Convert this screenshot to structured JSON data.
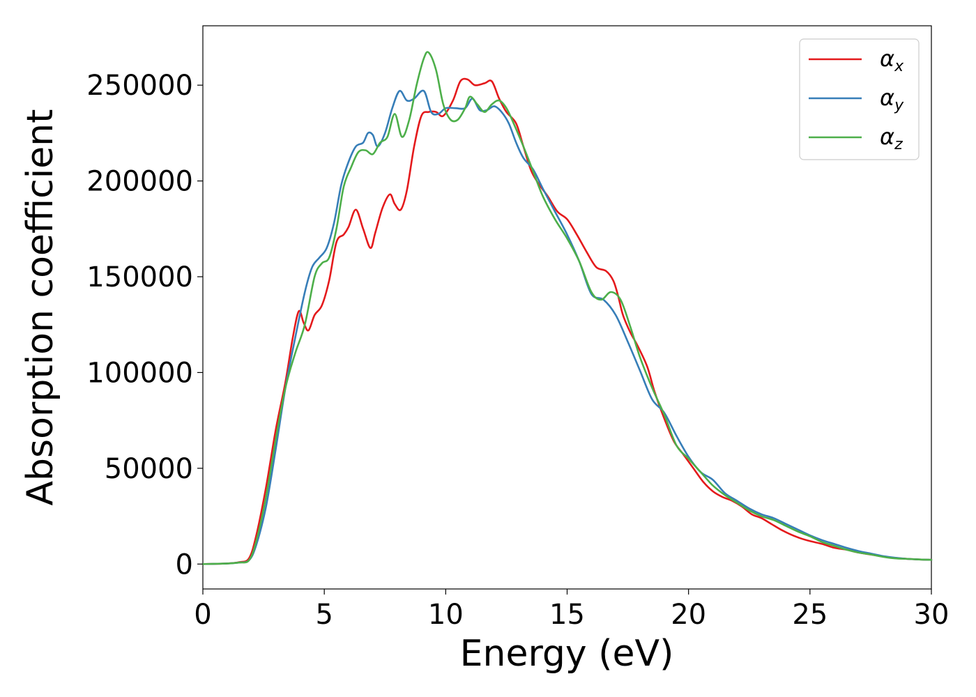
{
  "chart_data": {
    "type": "line",
    "xlabel": "Energy (eV)",
    "ylabel": "Absorption coefficient",
    "xlim": [
      0,
      30
    ],
    "ylim": [
      -13000,
      281000
    ],
    "xticks": [
      0,
      5,
      10,
      15,
      20,
      25,
      30
    ],
    "xtick_labels": [
      "0",
      "5",
      "10",
      "15",
      "20",
      "25",
      "30"
    ],
    "yticks": [
      0,
      50000,
      100000,
      150000,
      200000,
      250000
    ],
    "ytick_labels": [
      "0",
      "50000",
      "100000",
      "150000",
      "200000",
      "250000"
    ],
    "grid": false,
    "legend_position": "top-right",
    "series": [
      {
        "name": "α",
        "subscript": "x",
        "color": "#e41a1c",
        "x": [
          0,
          1,
          1.5,
          1.9,
          2.2,
          2.6,
          3.0,
          3.4,
          3.7,
          3.95,
          4.15,
          4.35,
          4.6,
          4.9,
          5.2,
          5.5,
          5.8,
          6.0,
          6.3,
          6.6,
          6.9,
          7.1,
          7.4,
          7.7,
          7.9,
          8.15,
          8.4,
          8.7,
          9.0,
          9.3,
          9.6,
          9.9,
          10.3,
          10.6,
          10.9,
          11.2,
          11.6,
          11.9,
          12.2,
          12.5,
          12.9,
          13.2,
          13.5,
          13.8,
          14.2,
          14.6,
          15.0,
          15.4,
          15.8,
          16.2,
          16.6,
          16.9,
          17.1,
          17.3,
          17.6,
          17.9,
          18.3,
          18.6,
          19.0,
          19.4,
          19.8,
          20.2,
          20.6,
          21.0,
          21.4,
          21.8,
          22.2,
          22.6,
          23.0,
          23.4,
          23.8,
          24.2,
          24.6,
          25.0,
          25.5,
          26.0,
          26.5,
          27.0,
          27.5,
          28.0,
          28.5,
          29.0,
          29.5,
          30.0
        ],
        "values": [
          0,
          300,
          1000,
          3000,
          15000,
          40000,
          70000,
          95000,
          118000,
          132000,
          126000,
          122000,
          130000,
          135000,
          148000,
          168000,
          172000,
          176000,
          185000,
          175000,
          165000,
          173000,
          186000,
          193000,
          188000,
          185000,
          195000,
          218000,
          234000,
          236000,
          236000,
          234000,
          242000,
          252000,
          253000,
          250000,
          251000,
          252000,
          243000,
          236000,
          230000,
          218000,
          206000,
          199000,
          192000,
          184000,
          180000,
          172000,
          163000,
          155000,
          153000,
          148000,
          140000,
          130000,
          121000,
          114000,
          103000,
          90000,
          76000,
          64000,
          57000,
          50000,
          43000,
          38000,
          35000,
          33000,
          30000,
          26000,
          24000,
          21000,
          18000,
          15500,
          13500,
          12000,
          10500,
          8500,
          7500,
          6000,
          5000,
          4000,
          3200,
          2700,
          2400,
          2200
        ]
      },
      {
        "name": "α",
        "subscript": "y",
        "color": "#377eb8",
        "x": [
          0,
          1,
          1.5,
          1.9,
          2.2,
          2.6,
          3.0,
          3.4,
          3.8,
          4.2,
          4.5,
          4.8,
          5.1,
          5.4,
          5.7,
          6.0,
          6.3,
          6.6,
          6.8,
          7.0,
          7.2,
          7.5,
          7.8,
          8.1,
          8.4,
          8.7,
          9.1,
          9.4,
          9.7,
          10.0,
          10.4,
          10.8,
          11.1,
          11.4,
          11.7,
          12.0,
          12.3,
          12.6,
          12.9,
          13.2,
          13.6,
          14.0,
          14.5,
          15.0,
          15.5,
          16.0,
          16.5,
          17.0,
          17.5,
          18.0,
          18.5,
          19.0,
          19.5,
          20.0,
          20.5,
          21.0,
          21.5,
          22.0,
          22.5,
          23.0,
          23.5,
          24.0,
          24.5,
          25.0,
          25.5,
          26.0,
          26.5,
          27.0,
          27.5,
          28.0,
          28.5,
          29.0,
          29.5,
          30.0
        ],
        "values": [
          0,
          300,
          800,
          2000,
          10000,
          30000,
          60000,
          92000,
          118000,
          142000,
          155000,
          160000,
          165000,
          178000,
          198000,
          210000,
          218000,
          220000,
          225000,
          224000,
          218000,
          225000,
          238000,
          247000,
          242000,
          243000,
          247000,
          236000,
          235000,
          238000,
          238000,
          238000,
          243000,
          237000,
          237000,
          239000,
          236000,
          230000,
          220000,
          212000,
          206000,
          196000,
          184000,
          172000,
          158000,
          141000,
          138000,
          130000,
          116000,
          101000,
          86000,
          79000,
          67000,
          56000,
          48000,
          44000,
          37000,
          33000,
          29000,
          26000,
          24000,
          21000,
          18000,
          15000,
          12500,
          10500,
          8500,
          6800,
          5500,
          4200,
          3300,
          2700,
          2400,
          2200
        ]
      },
      {
        "name": "α",
        "subscript": "z",
        "color": "#4daf4a",
        "x": [
          0,
          1,
          1.5,
          1.9,
          2.2,
          2.6,
          3.0,
          3.4,
          3.8,
          4.2,
          4.6,
          4.9,
          5.2,
          5.5,
          5.8,
          6.1,
          6.4,
          6.7,
          7.0,
          7.3,
          7.6,
          7.9,
          8.2,
          8.5,
          8.8,
          9.1,
          9.3,
          9.6,
          9.9,
          10.2,
          10.5,
          10.8,
          11.0,
          11.3,
          11.6,
          11.9,
          12.2,
          12.5,
          12.8,
          13.2,
          13.6,
          14.0,
          14.5,
          15.0,
          15.5,
          16.0,
          16.4,
          16.8,
          17.2,
          17.6,
          18.0,
          18.5,
          19.0,
          19.5,
          20.0,
          20.5,
          21.0,
          21.5,
          22.0,
          22.5,
          23.0,
          23.5,
          24.0,
          24.5,
          25.0,
          25.5,
          26.0,
          26.5,
          27.0,
          27.5,
          28.0,
          28.5,
          29.0,
          29.5,
          30.0
        ],
        "values": [
          0,
          300,
          800,
          2000,
          12000,
          35000,
          65000,
          92000,
          110000,
          125000,
          150000,
          157000,
          160000,
          175000,
          197000,
          207000,
          215000,
          216000,
          214000,
          220000,
          223000,
          235000,
          223000,
          232000,
          250000,
          264000,
          267000,
          258000,
          240000,
          232000,
          232000,
          238000,
          244000,
          240000,
          236000,
          240000,
          242000,
          238000,
          230000,
          218000,
          205000,
          192000,
          180000,
          170000,
          158000,
          142000,
          138000,
          142000,
          138000,
          124000,
          108000,
          92000,
          78000,
          62000,
          55000,
          48000,
          41000,
          36000,
          32000,
          28000,
          25000,
          23000,
          20000,
          17000,
          14500,
          11500,
          9500,
          7500,
          6000,
          5000,
          3800,
          3000,
          2700,
          2400,
          2200
        ]
      }
    ]
  }
}
